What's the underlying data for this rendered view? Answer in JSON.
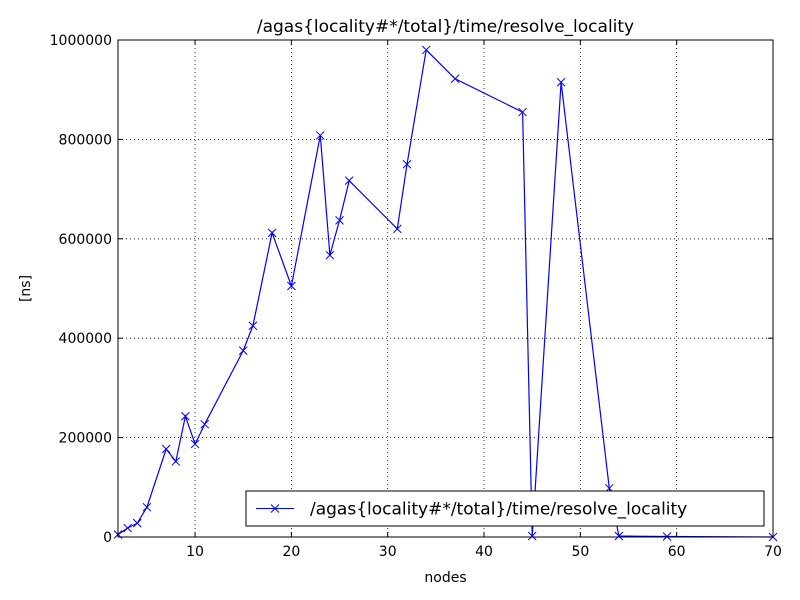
{
  "chart_data": {
    "type": "line",
    "title": "/agas{locality#*/total}/time/resolve_locality",
    "xlabel": "nodes",
    "ylabel": "[ns]",
    "xlim": [
      2,
      70
    ],
    "ylim": [
      0,
      1000000
    ],
    "xticks": [
      10,
      20,
      30,
      40,
      50,
      60,
      70
    ],
    "yticks": [
      0,
      200000,
      400000,
      600000,
      800000,
      1000000
    ],
    "grid": true,
    "legend_position": "lower-right",
    "marker": "x",
    "color": "#0000ff",
    "series": [
      {
        "name": "/agas{locality#*/total}/time/resolve_locality",
        "x": [
          2,
          3,
          4,
          5,
          7,
          8,
          9,
          10,
          11,
          15,
          16,
          18,
          20,
          23,
          24,
          25,
          26,
          31,
          32,
          34,
          37,
          44,
          45,
          48,
          53,
          54,
          59,
          70
        ],
        "y": [
          5000,
          18000,
          28000,
          60000,
          177000,
          152000,
          243000,
          187000,
          227000,
          375000,
          425000,
          612000,
          505000,
          808000,
          567000,
          637000,
          717000,
          620000,
          750000,
          980000,
          922000,
          855000,
          2000,
          915000,
          98000,
          2000,
          1000,
          0
        ]
      }
    ]
  }
}
